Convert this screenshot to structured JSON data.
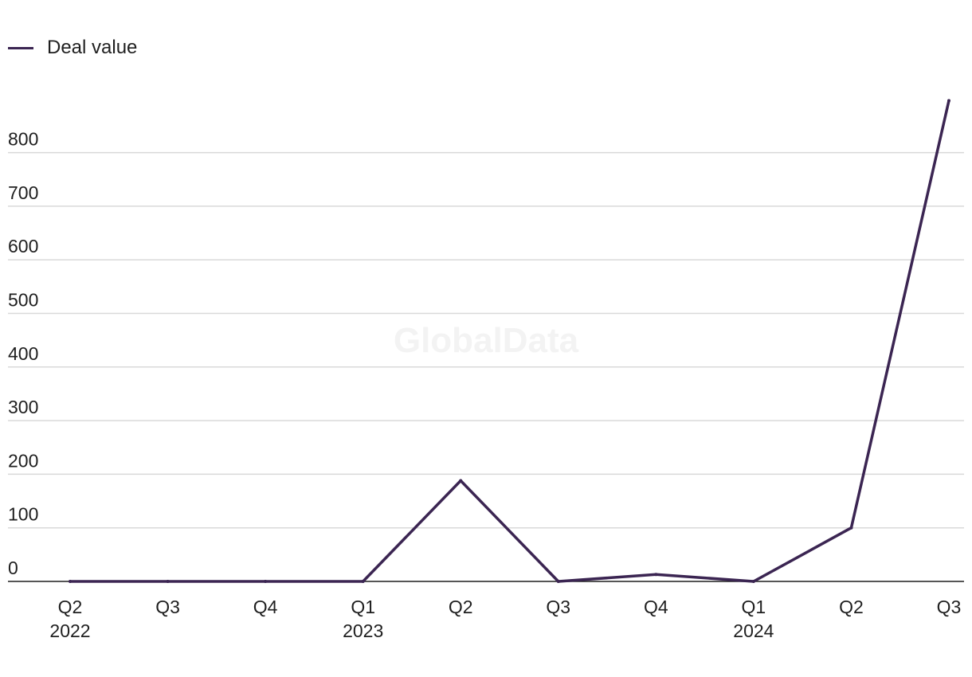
{
  "chart_data": {
    "type": "line",
    "title": "",
    "xlabel": "",
    "ylabel": "",
    "categories": [
      {
        "quarter": "Q2",
        "year": "2022"
      },
      {
        "quarter": "Q3",
        "year": ""
      },
      {
        "quarter": "Q4",
        "year": ""
      },
      {
        "quarter": "Q1",
        "year": "2023"
      },
      {
        "quarter": "Q2",
        "year": ""
      },
      {
        "quarter": "Q3",
        "year": ""
      },
      {
        "quarter": "Q4",
        "year": ""
      },
      {
        "quarter": "Q1",
        "year": "2024"
      },
      {
        "quarter": "Q2",
        "year": ""
      },
      {
        "quarter": "Q3",
        "year": ""
      }
    ],
    "series": [
      {
        "name": "Deal value",
        "color": "#3b2552",
        "values": [
          0,
          0,
          0,
          0,
          188,
          0,
          13,
          0,
          100,
          897
        ]
      }
    ],
    "yticks": [
      0,
      100,
      200,
      300,
      400,
      500,
      600,
      700,
      800
    ],
    "ylim": [
      0,
      900
    ],
    "grid": true,
    "legend_position": "top-left",
    "watermark": "GlobalData"
  }
}
